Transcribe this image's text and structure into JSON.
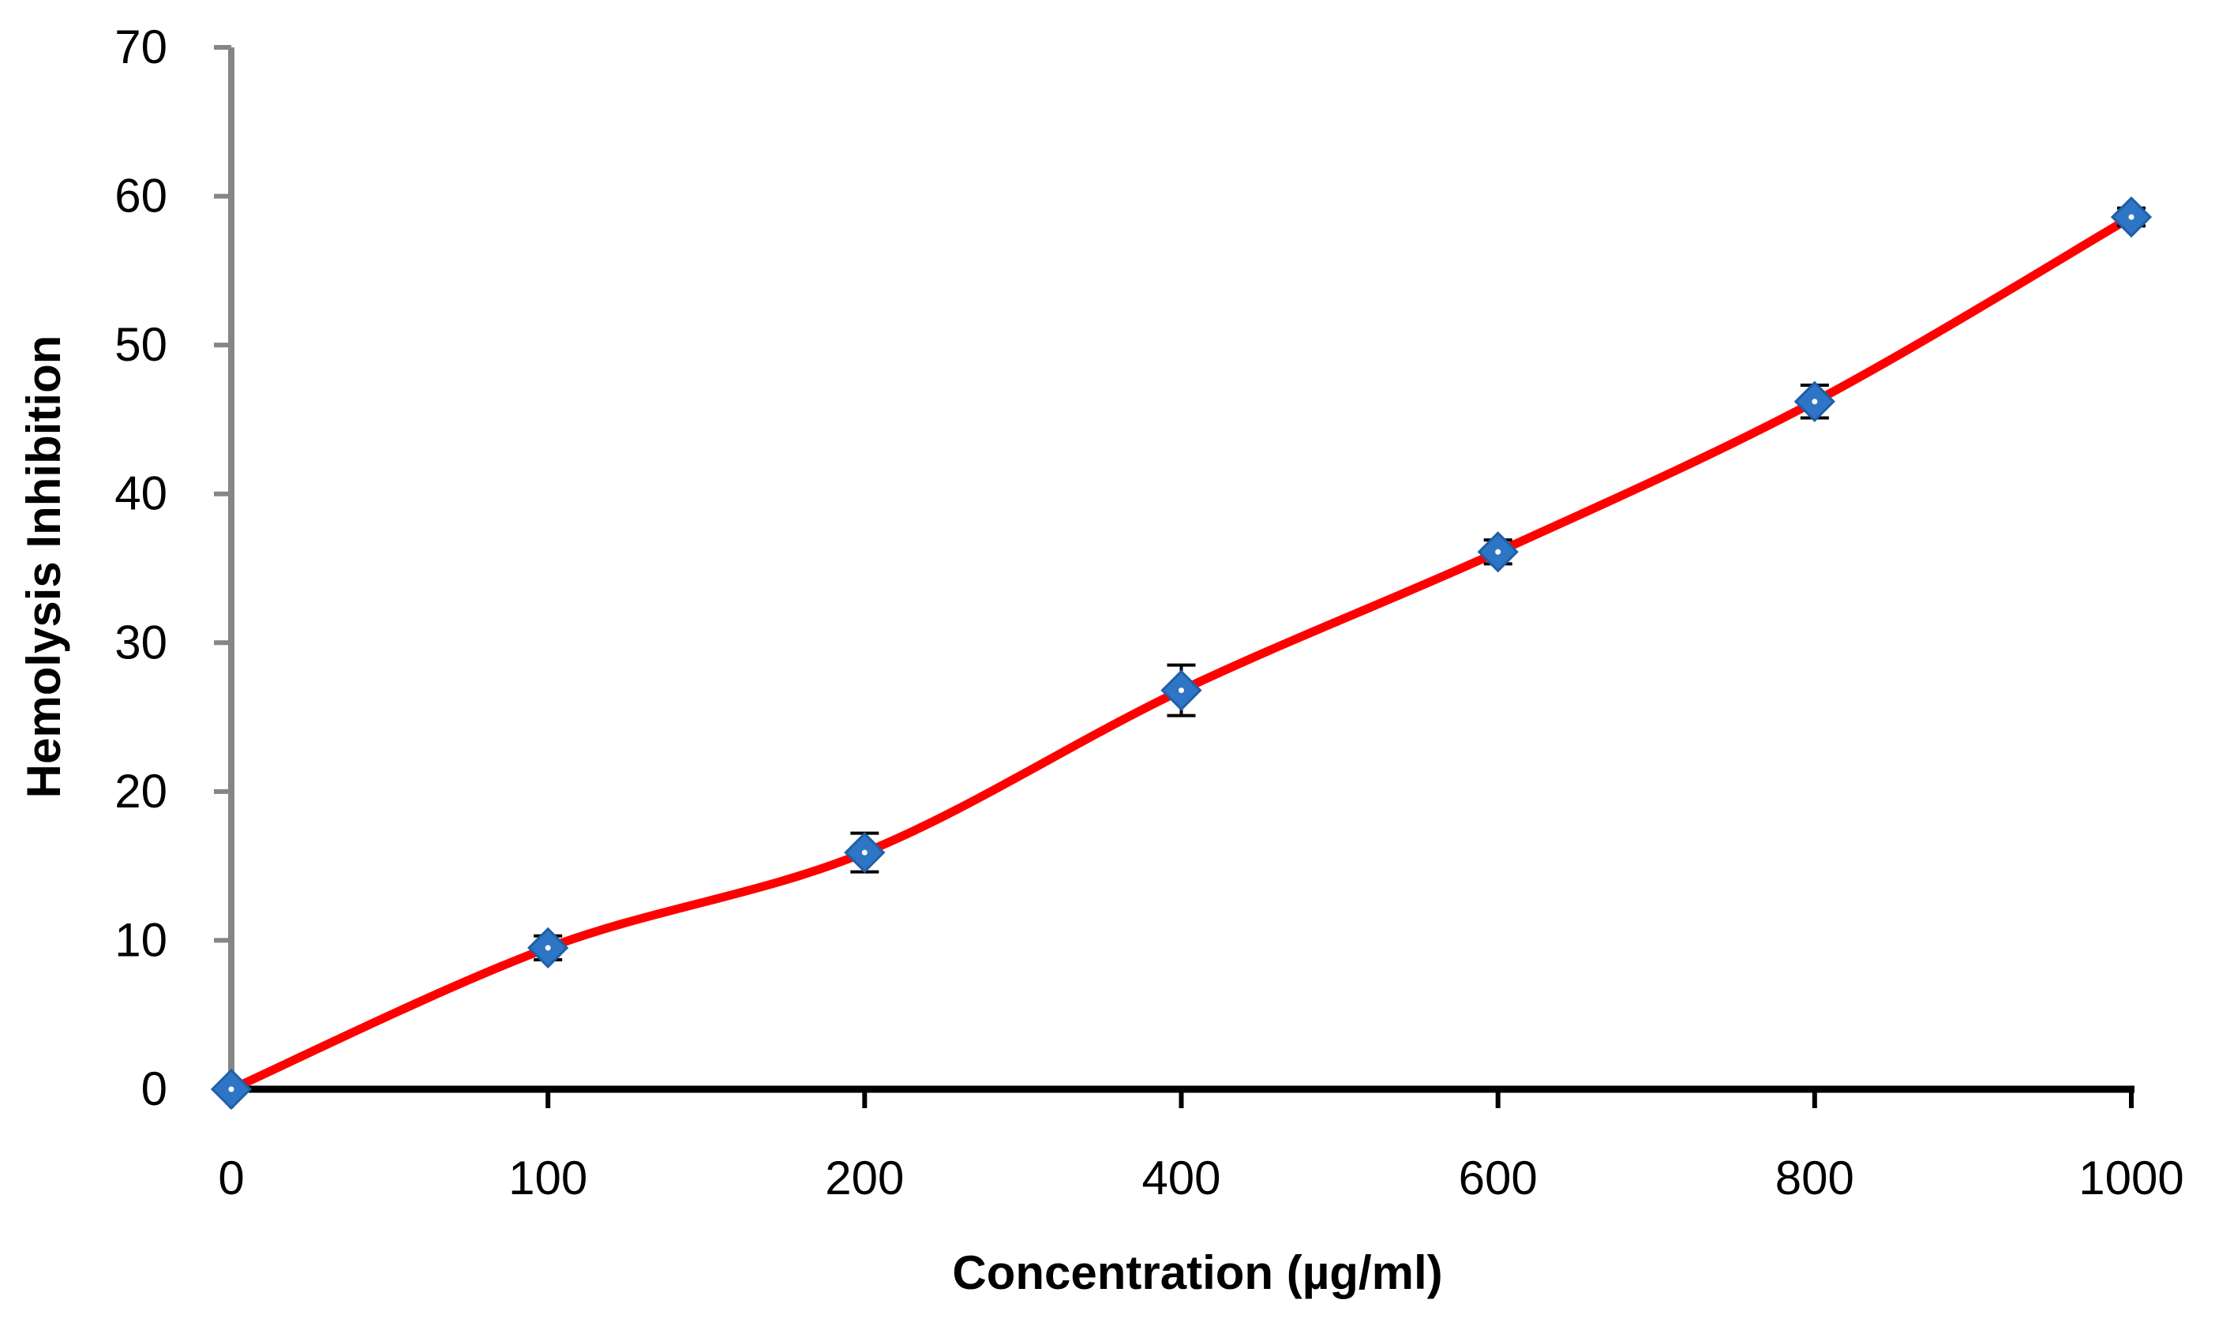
{
  "chart_data": {
    "type": "line",
    "title": "",
    "xlabel": "Concentration (µg/ml)",
    "ylabel": "Hemolysis Inhibition",
    "categories": [
      "0",
      "100",
      "200",
      "400",
      "600",
      "800",
      "1000"
    ],
    "ylim": [
      0,
      70
    ],
    "yticks": [
      0,
      10,
      20,
      30,
      40,
      50,
      60,
      70
    ],
    "grid": false,
    "legend": "none",
    "series": [
      {
        "name": "Hemolysis Inhibition",
        "values": [
          0,
          9.5,
          15.9,
          26.8,
          36.1,
          46.2,
          58.6
        ],
        "errors": [
          0,
          0.8,
          1.3,
          1.7,
          0.8,
          1.1,
          0.6
        ],
        "line_color": "#ff0000",
        "marker_color": "#2f75c5",
        "marker": "diamond",
        "smooth": true
      }
    ]
  }
}
